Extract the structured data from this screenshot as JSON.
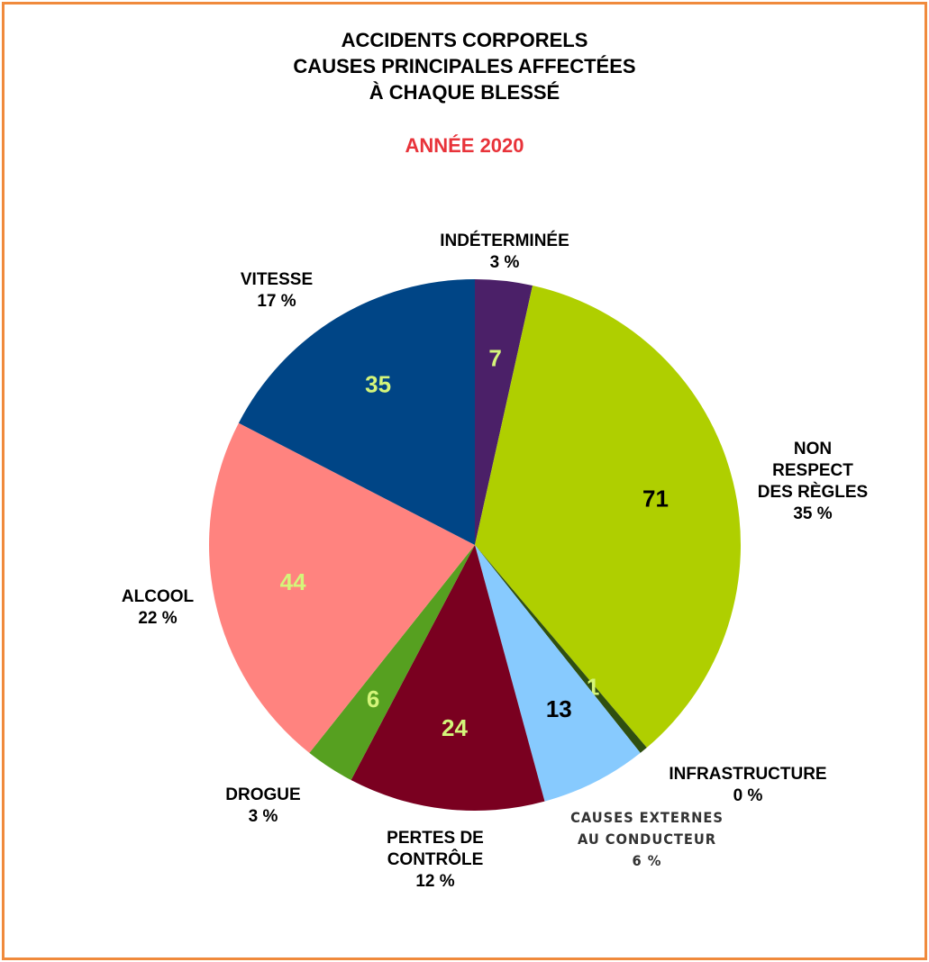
{
  "chart_data": {
    "type": "pie",
    "title": "ACCIDENTS CORPORELS\nCAUSES PRINCIPALES AFFECTÉES\nÀ CHAQUE BLESSÉ",
    "subtitle": "ANNÉE 2020",
    "categories": [
      "INDÉTERMINÉE",
      "NON RESPECT\nDES RÈGLES",
      "INFRASTRUCTURE",
      "CAUSES EXTERNES\nAU CONDUCTEUR",
      "PERTES DE\nCONTRÔLE",
      "DROGUE",
      "ALCOOL",
      "VITESSE"
    ],
    "values": [
      7,
      71,
      1,
      13,
      24,
      6,
      44,
      35
    ],
    "percent_labels": [
      "3 %",
      "35 %",
      "0 %",
      "6 %",
      "12 %",
      "3 %",
      "22 %",
      "17 %"
    ],
    "colors": [
      "#4b2068",
      "#afcf00",
      "#2f4f10",
      "#87cafe",
      "#7a0020",
      "#56a020",
      "#ff837f",
      "#004586"
    ],
    "value_label_colors": [
      "#d4f57a",
      "#000000",
      "#d4f57a",
      "#000000",
      "#d4f57a",
      "#d4f57a",
      "#d4f57a",
      "#d4f57a"
    ]
  }
}
